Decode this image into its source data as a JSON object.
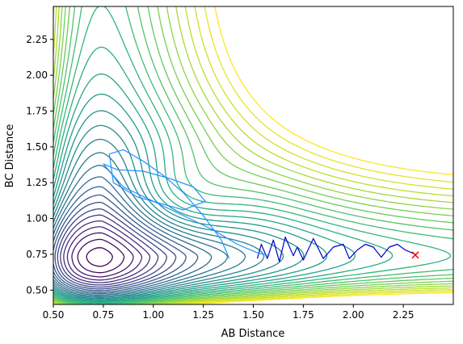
{
  "chart_data": {
    "type": "contour",
    "title": "",
    "xlabel": "AB Distance",
    "ylabel": "BC Distance",
    "xlim": [
      0.5,
      2.5
    ],
    "ylim": [
      0.4,
      2.48
    ],
    "xticks": [
      "0.50",
      "0.75",
      "1.00",
      "1.25",
      "1.50",
      "1.75",
      "2.00",
      "2.25"
    ],
    "yticks": [
      "0.50",
      "0.75",
      "1.00",
      "1.25",
      "1.50",
      "1.75",
      "2.00",
      "2.25"
    ],
    "xtick_values": [
      0.5,
      0.75,
      1.0,
      1.25,
      1.5,
      1.75,
      2.0,
      2.25
    ],
    "ytick_values": [
      0.5,
      0.75,
      1.0,
      1.25,
      1.5,
      1.75,
      2.0,
      2.25
    ],
    "grid": false,
    "colormap": "viridis",
    "contour_level_count": 30,
    "trajectories": [
      {
        "color": "#0000cc",
        "points": [
          [
            1.52,
            0.72
          ],
          [
            1.54,
            0.82
          ],
          [
            1.57,
            0.72
          ],
          [
            1.6,
            0.85
          ],
          [
            1.63,
            0.7
          ],
          [
            1.66,
            0.87
          ],
          [
            1.7,
            0.74
          ],
          [
            1.72,
            0.8
          ],
          [
            1.75,
            0.71
          ],
          [
            1.8,
            0.86
          ],
          [
            1.85,
            0.72
          ],
          [
            1.9,
            0.8
          ],
          [
            1.95,
            0.82
          ],
          [
            1.98,
            0.72
          ],
          [
            2.02,
            0.78
          ],
          [
            2.06,
            0.82
          ],
          [
            2.1,
            0.8
          ],
          [
            2.14,
            0.73
          ],
          [
            2.18,
            0.8
          ],
          [
            2.22,
            0.82
          ],
          [
            2.26,
            0.78
          ],
          [
            2.31,
            0.75
          ]
        ]
      },
      {
        "color": "#1e90ff",
        "points": [
          [
            1.38,
            0.72
          ],
          [
            1.34,
            0.85
          ],
          [
            1.25,
            1.02
          ],
          [
            1.15,
            1.18
          ],
          [
            1.05,
            1.3
          ],
          [
            0.95,
            1.4
          ],
          [
            0.85,
            1.48
          ],
          [
            0.78,
            1.45
          ],
          [
            0.8,
            1.25
          ],
          [
            0.92,
            1.15
          ],
          [
            1.05,
            1.1
          ],
          [
            1.15,
            1.06
          ],
          [
            1.26,
            1.12
          ],
          [
            1.2,
            1.22
          ],
          [
            1.08,
            1.28
          ],
          [
            0.95,
            1.33
          ],
          [
            0.82,
            1.34
          ],
          [
            0.75,
            1.38
          ],
          [
            0.85,
            1.22
          ],
          [
            1.0,
            1.12
          ],
          [
            1.15,
            1.02
          ],
          [
            1.3,
            0.92
          ],
          [
            1.42,
            0.82
          ],
          [
            1.52,
            0.76
          ],
          [
            1.58,
            0.74
          ]
        ]
      }
    ],
    "end_marker": {
      "symbol": "x",
      "color": "#ff0000",
      "x": 2.31,
      "y": 0.745
    }
  }
}
